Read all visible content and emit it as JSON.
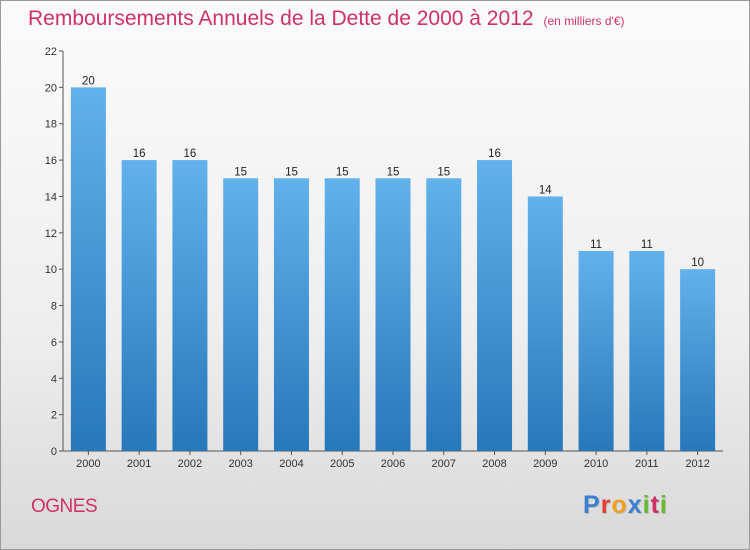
{
  "header": {
    "title": "Remboursements Annuels de la Dette de 2000 à 2012",
    "subtitle": "(en milliers d'€)"
  },
  "footer": {
    "commune": "OGNES",
    "logo_text": "Proxiti",
    "logo_colors": [
      "#3a7fd0",
      "#e83a3a",
      "#f0a020",
      "#3a7fd0",
      "#6ab830",
      "#d0306a",
      "#6ab830"
    ]
  },
  "colors": {
    "title": "#d0306a",
    "bar_top": "#62b1ec",
    "bar_bottom": "#2778ba",
    "axis": "#555555"
  },
  "chart_data": {
    "type": "bar",
    "categories": [
      "2000",
      "2001",
      "2002",
      "2003",
      "2004",
      "2005",
      "2006",
      "2007",
      "2008",
      "2009",
      "2010",
      "2011",
      "2012"
    ],
    "values": [
      20,
      16,
      16,
      15,
      15,
      15,
      15,
      15,
      16,
      14,
      11,
      11,
      10
    ],
    "title": "Remboursements Annuels de la Dette de 2000 à 2012",
    "subtitle": "(en milliers d'€)",
    "xlabel": "",
    "ylabel": "",
    "ylim": [
      0,
      22
    ],
    "yticks": [
      0,
      2,
      4,
      6,
      8,
      10,
      12,
      14,
      16,
      18,
      20,
      22
    ],
    "grid": false,
    "data_labels": true
  }
}
